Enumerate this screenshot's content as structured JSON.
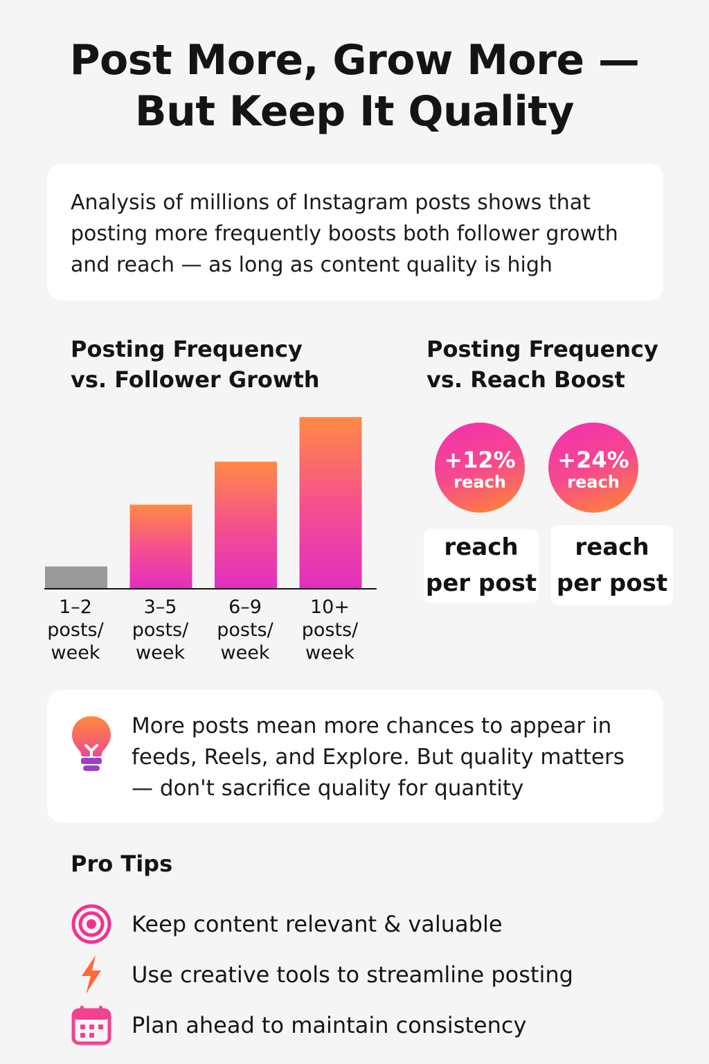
{
  "title": {
    "line1": "Post More, Grow More —",
    "line2": "But Keep It Quality"
  },
  "intro": "Analysis of millions of Instagram posts shows that posting more frequently boosts both follower growth and reach — as long as content quality is high",
  "growth_title": {
    "line1": "Posting Frequency",
    "line2": "vs. Follower Growth"
  },
  "reach_title": {
    "line1": "Posting Frequency",
    "line2": "vs. Reach Boost"
  },
  "chart_data": [
    {
      "type": "bar",
      "title": "Posting Frequency vs. Follower Growth",
      "categories": [
        [
          "1–2",
          "posts/",
          "week"
        ],
        [
          "3–5",
          "posts/",
          "week"
        ],
        [
          "6–9",
          "posts/",
          "week"
        ],
        [
          "10+",
          "posts/",
          "week"
        ]
      ],
      "values": [
        13,
        49,
        74,
        100
      ],
      "ylim": [
        0,
        100
      ],
      "grid": false,
      "colors": [
        "#9a9a9a",
        "gradient",
        "gradient",
        "gradient"
      ]
    },
    {
      "type": "table",
      "title": "Posting Frequency vs. Reach Boost",
      "items": [
        {
          "value": "+12%",
          "label": "reach",
          "caption_1": "reach",
          "caption_2": "per post"
        },
        {
          "value": "+24%",
          "label": "reach",
          "caption_1": "reach",
          "caption_2": "per post"
        }
      ]
    }
  ],
  "insight": {
    "icon": "lightbulb-icon",
    "text": "More posts mean more chances to appear in feeds, Reels, and Explore. But quality matters — don't sacrifice quality for quantity"
  },
  "tips_title": "Pro Tips",
  "tips": [
    {
      "icon": "target-icon",
      "text": "Keep content relevant & valuable"
    },
    {
      "icon": "lightning-icon",
      "text": "Use creative tools to streamline posting"
    },
    {
      "icon": "calendar-icon",
      "text": "Plan ahead to maintain consistency"
    }
  ],
  "colors": {
    "accent_pink": "#ee2fa8",
    "accent_orange": "#ff8a2a",
    "bar_gray": "#9a9a9a",
    "bulb_purple": "#9b3fd0"
  }
}
